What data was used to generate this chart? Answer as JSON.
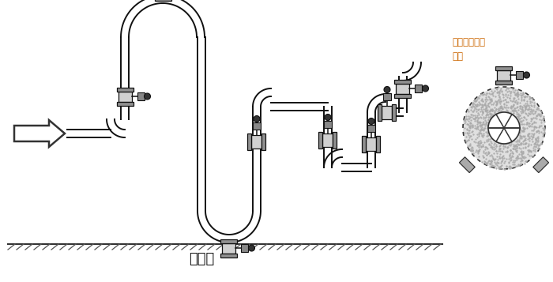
{
  "ground_label": "水平面",
  "annotation_text": "允许任意角度\n安装",
  "annotation_color": "#CC6600",
  "bg_color": "#ffffff",
  "pipe_color": "#111111",
  "pipe_lw": 1.4
}
